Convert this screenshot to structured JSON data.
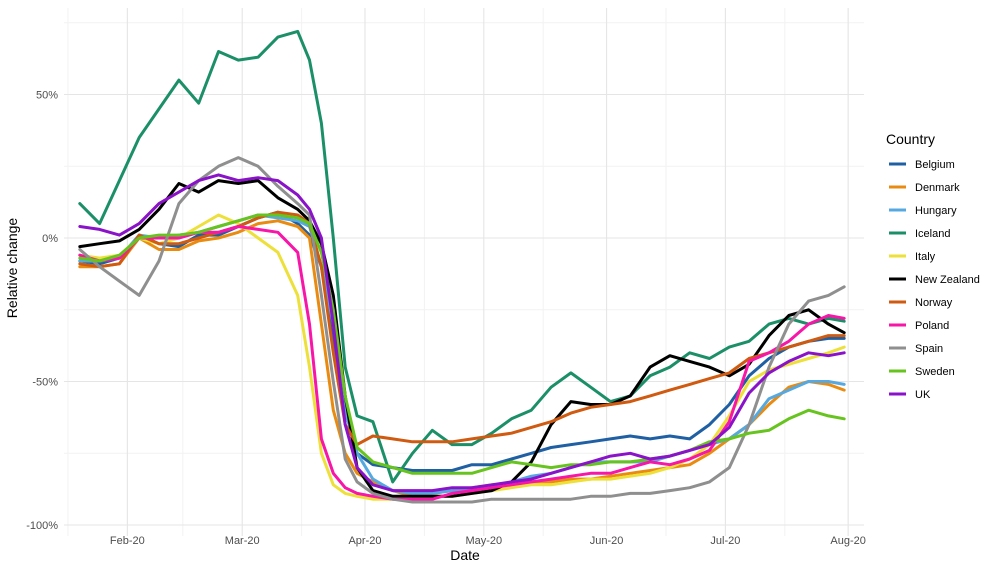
{
  "chart_data": {
    "type": "line",
    "xlabel": "Date",
    "ylabel": "Relative change",
    "x_ticks": [
      "Feb-20",
      "Mar-20",
      "Apr-20",
      "May-20",
      "Jun-20",
      "Jul-20",
      "Aug-20"
    ],
    "y_ticks": [
      "-100%",
      "-50%",
      "0%",
      "50%"
    ],
    "xlim": [
      "2020-01-16",
      "2020-08-05"
    ],
    "ylim": [
      -100,
      75
    ],
    "grid": true,
    "legend_title": "Country",
    "legend_position": "right",
    "x": [
      "2020-01-20",
      "2020-01-25",
      "2020-01-30",
      "2020-02-04",
      "2020-02-09",
      "2020-02-14",
      "2020-02-19",
      "2020-02-24",
      "2020-02-29",
      "2020-03-05",
      "2020-03-10",
      "2020-03-15",
      "2020-03-18",
      "2020-03-21",
      "2020-03-24",
      "2020-03-27",
      "2020-03-30",
      "2020-04-03",
      "2020-04-08",
      "2020-04-13",
      "2020-04-18",
      "2020-04-23",
      "2020-04-28",
      "2020-05-03",
      "2020-05-08",
      "2020-05-13",
      "2020-05-18",
      "2020-05-23",
      "2020-05-28",
      "2020-06-02",
      "2020-06-07",
      "2020-06-12",
      "2020-06-17",
      "2020-06-22",
      "2020-06-27",
      "2020-07-02",
      "2020-07-07",
      "2020-07-12",
      "2020-07-17",
      "2020-07-22",
      "2020-07-27",
      "2020-07-31"
    ],
    "series": [
      {
        "name": "Belgium",
        "color": "#1f5fa3",
        "values": [
          -8,
          -9,
          -7,
          1,
          -2,
          -3,
          1,
          1,
          4,
          7,
          9,
          5,
          1,
          -10,
          -35,
          -60,
          -75,
          -79,
          -80,
          -81,
          -81,
          -81,
          -79,
          -79,
          -77,
          -75,
          -73,
          -72,
          -71,
          -70,
          -69,
          -70,
          -69,
          -70,
          -65,
          -58,
          -48,
          -42,
          -38,
          -36,
          -35,
          -35
        ]
      },
      {
        "name": "Denmark",
        "color": "#e98b10",
        "values": [
          -10,
          -10,
          -9,
          0,
          -4,
          -4,
          -1,
          0,
          2,
          5,
          6,
          4,
          0,
          -30,
          -60,
          -75,
          -82,
          -85,
          -88,
          -90,
          -89,
          -88,
          -87,
          -86,
          -86,
          -85,
          -85,
          -84,
          -84,
          -83,
          -82,
          -81,
          -80,
          -79,
          -75,
          -70,
          -65,
          -58,
          -52,
          -50,
          -51,
          -53
        ]
      },
      {
        "name": "Hungary",
        "color": "#56a8e0",
        "values": [
          -8,
          -8,
          -7,
          1,
          0,
          1,
          2,
          4,
          6,
          8,
          7,
          6,
          4,
          -10,
          -30,
          -60,
          -75,
          -84,
          -88,
          -89,
          -89,
          -88,
          -88,
          -87,
          -85,
          -83,
          -82,
          -80,
          -78,
          -78,
          -78,
          -78,
          -76,
          -74,
          -72,
          -70,
          -65,
          -56,
          -53,
          -50,
          -50,
          -51
        ]
      },
      {
        "name": "Iceland",
        "color": "#1b8f68",
        "values": [
          12,
          5,
          20,
          35,
          45,
          55,
          47,
          65,
          62,
          63,
          70,
          72,
          62,
          40,
          0,
          -45,
          -62,
          -64,
          -85,
          -75,
          -67,
          -72,
          -72,
          -68,
          -63,
          -60,
          -52,
          -47,
          -52,
          -57,
          -55,
          -48,
          -45,
          -40,
          -42,
          -38,
          -36,
          -30,
          -28,
          -30,
          -28,
          -29
        ]
      },
      {
        "name": "Italy",
        "color": "#ede03a",
        "values": [
          -6,
          -7,
          -6,
          0,
          -2,
          0,
          4,
          8,
          5,
          0,
          -5,
          -20,
          -45,
          -75,
          -86,
          -89,
          -90,
          -91,
          -91,
          -91,
          -90,
          -90,
          -89,
          -88,
          -87,
          -86,
          -86,
          -85,
          -84,
          -84,
          -83,
          -82,
          -80,
          -77,
          -72,
          -62,
          -50,
          -46,
          -44,
          -42,
          -40,
          -38
        ]
      },
      {
        "name": "New Zealand",
        "color": "#000000",
        "values": [
          -3,
          -2,
          -1,
          3,
          10,
          19,
          16,
          20,
          19,
          20,
          14,
          10,
          6,
          -2,
          -20,
          -55,
          -80,
          -88,
          -90,
          -90,
          -90,
          -90,
          -89,
          -88,
          -85,
          -78,
          -65,
          -57,
          -58,
          -58,
          -55,
          -45,
          -41,
          -43,
          -45,
          -48,
          -44,
          -34,
          -27,
          -25,
          -30,
          -33
        ]
      },
      {
        "name": "Norway",
        "color": "#cf5a10",
        "values": [
          -9,
          -10,
          -9,
          1,
          -2,
          -2,
          0,
          2,
          4,
          7,
          9,
          8,
          5,
          -10,
          -40,
          -65,
          -72,
          -69,
          -70,
          -71,
          -71,
          -71,
          -70,
          -69,
          -68,
          -66,
          -64,
          -61,
          -59,
          -58,
          -57,
          -55,
          -53,
          -51,
          -49,
          -47,
          -42,
          -40,
          -38,
          -36,
          -34,
          -34
        ]
      },
      {
        "name": "Poland",
        "color": "#f716a8",
        "values": [
          -6,
          -8,
          -7,
          0,
          0,
          0,
          2,
          2,
          4,
          3,
          2,
          -5,
          -30,
          -70,
          -82,
          -87,
          -89,
          -90,
          -91,
          -91,
          -91,
          -89,
          -88,
          -87,
          -86,
          -85,
          -84,
          -83,
          -82,
          -82,
          -80,
          -78,
          -79,
          -77,
          -74,
          -64,
          -43,
          -40,
          -36,
          -30,
          -27,
          -28
        ]
      },
      {
        "name": "Spain",
        "color": "#8f8f8f",
        "values": [
          -4,
          -10,
          -15,
          -20,
          -8,
          12,
          20,
          25,
          28,
          25,
          18,
          12,
          8,
          -20,
          -50,
          -77,
          -85,
          -89,
          -91,
          -92,
          -92,
          -92,
          -92,
          -91,
          -91,
          -91,
          -91,
          -91,
          -90,
          -90,
          -89,
          -89,
          -88,
          -87,
          -85,
          -80,
          -65,
          -45,
          -30,
          -22,
          -20,
          -17
        ]
      },
      {
        "name": "Sweden",
        "color": "#67c41e",
        "values": [
          -7,
          -8,
          -6,
          0,
          1,
          1,
          2,
          4,
          6,
          8,
          8,
          7,
          5,
          -5,
          -25,
          -55,
          -73,
          -78,
          -80,
          -82,
          -82,
          -82,
          -82,
          -80,
          -78,
          -79,
          -80,
          -79,
          -79,
          -78,
          -78,
          -77,
          -76,
          -74,
          -71,
          -70,
          -68,
          -67,
          -63,
          -60,
          -62,
          -63
        ]
      },
      {
        "name": "UK",
        "color": "#8a12c9",
        "values": [
          4,
          3,
          1,
          5,
          12,
          16,
          20,
          22,
          20,
          21,
          20,
          15,
          10,
          0,
          -30,
          -65,
          -80,
          -86,
          -88,
          -88,
          -88,
          -87,
          -87,
          -86,
          -85,
          -84,
          -82,
          -80,
          -78,
          -76,
          -75,
          -77,
          -76,
          -74,
          -72,
          -66,
          -54,
          -47,
          -43,
          -40,
          -41,
          -40
        ]
      }
    ]
  }
}
